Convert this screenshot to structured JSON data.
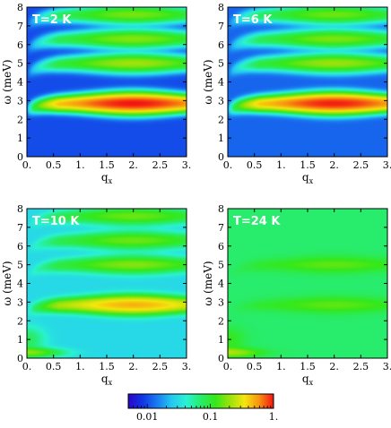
{
  "chart_data": [
    {
      "type": "heatmap",
      "panel_label": "T=2 K",
      "xlabel": "q",
      "xlabel_sub": "x",
      "ylabel": "ω (meV)",
      "xlim": [
        0,
        3
      ],
      "ylim": [
        0,
        8
      ],
      "xticks": [
        "0.",
        "0.5",
        "1.",
        "1.5",
        "2.",
        "2.5",
        "3."
      ],
      "yticks": [
        "0",
        "1",
        "2",
        "3",
        "4",
        "5",
        "6",
        "7",
        "8"
      ],
      "bands": [
        {
          "energy": 2.85,
          "peak_intensity": 1.0,
          "peak_q": 2.0
        },
        {
          "energy": 5.0,
          "peak_intensity": 0.2,
          "peak_q": 2.0
        },
        {
          "energy": 6.3,
          "peak_intensity": 0.17,
          "peak_q": 2.0
        },
        {
          "energy": 7.6,
          "peak_intensity": 0.16,
          "peak_q": 2.0
        }
      ],
      "background_intensity": 0.01,
      "low_energy_band": null
    },
    {
      "type": "heatmap",
      "panel_label": "T=6 K",
      "xlabel": "q",
      "xlabel_sub": "x",
      "ylabel": "ω (meV)",
      "xlim": [
        0,
        3
      ],
      "ylim": [
        0,
        8
      ],
      "xticks": [
        "0.",
        "0.5",
        "1.",
        "1.5",
        "2.",
        "2.5",
        "3."
      ],
      "yticks": [
        "0",
        "1",
        "2",
        "3",
        "4",
        "5",
        "6",
        "7",
        "8"
      ],
      "bands": [
        {
          "energy": 2.85,
          "peak_intensity": 0.95,
          "peak_q": 2.0
        },
        {
          "energy": 5.0,
          "peak_intensity": 0.19,
          "peak_q": 2.0
        },
        {
          "energy": 6.3,
          "peak_intensity": 0.16,
          "peak_q": 2.0
        },
        {
          "energy": 7.6,
          "peak_intensity": 0.15,
          "peak_q": 2.0
        }
      ],
      "background_intensity": 0.012,
      "low_energy_band": null
    },
    {
      "type": "heatmap",
      "panel_label": "T=10 K",
      "xlabel": "q",
      "xlabel_sub": "x",
      "ylabel": "ω (meV)",
      "xlim": [
        0,
        3
      ],
      "ylim": [
        0,
        8
      ],
      "xticks": [
        "0.",
        "0.5",
        "1.",
        "1.5",
        "2.",
        "2.5",
        "3."
      ],
      "yticks": [
        "0",
        "1",
        "2",
        "3",
        "4",
        "5",
        "6",
        "7",
        "8"
      ],
      "bands": [
        {
          "energy": 2.85,
          "peak_intensity": 0.45,
          "peak_q": 2.0
        },
        {
          "energy": 5.0,
          "peak_intensity": 0.15,
          "peak_q": 2.0
        },
        {
          "energy": 6.3,
          "peak_intensity": 0.13,
          "peak_q": 2.0
        },
        {
          "energy": 7.6,
          "peak_intensity": 0.13,
          "peak_q": 2.0
        }
      ],
      "background_intensity": 0.03,
      "low_energy_band": {
        "energy": 0.3,
        "peak_intensity": 0.15
      }
    },
    {
      "type": "heatmap",
      "panel_label": "T=24 K",
      "xlabel": "q",
      "xlabel_sub": "x",
      "ylabel": "ω (meV)",
      "xlim": [
        0,
        3
      ],
      "ylim": [
        0,
        8
      ],
      "xticks": [
        "0.",
        "0.5",
        "1.",
        "1.5",
        "2.",
        "2.5",
        "3."
      ],
      "yticks": [
        "0",
        "1",
        "2",
        "3",
        "4",
        "5",
        "6",
        "7",
        "8"
      ],
      "bands": [
        {
          "energy": 2.85,
          "peak_intensity": 0.08,
          "peak_q": 2.0
        },
        {
          "energy": 5.0,
          "peak_intensity": 0.08,
          "peak_q": 2.0
        }
      ],
      "background_intensity": 0.07,
      "low_energy_band": {
        "energy": 0.3,
        "peak_intensity": 0.15
      }
    }
  ],
  "colorbar": {
    "scale": "log",
    "range": [
      0.005,
      1.0
    ],
    "ticks": [
      {
        "value": 0.01,
        "label": "0.01"
      },
      {
        "value": 0.1,
        "label": "0.1"
      },
      {
        "value": 1.0,
        "label": "1."
      }
    ],
    "colors": [
      "#2a06c9",
      "#1036e6",
      "#1a7cf0",
      "#25c8f2",
      "#2af2d2",
      "#28ec6a",
      "#34e81a",
      "#9ce20c",
      "#f5e60c",
      "#f79310",
      "#f41412"
    ]
  }
}
